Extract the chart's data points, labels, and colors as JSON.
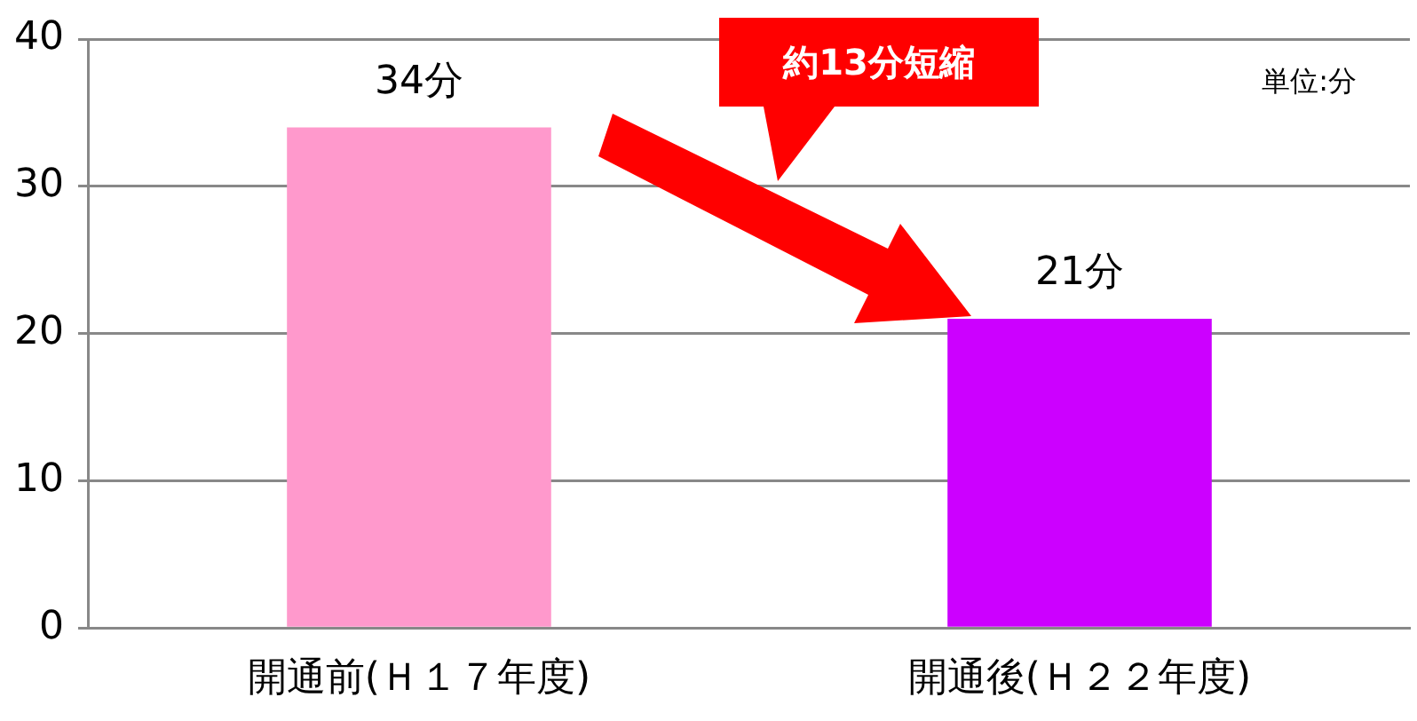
{
  "chart_data": {
    "type": "bar",
    "categories": [
      "開通前(Ｈ１７年度)",
      "開通後(Ｈ２２年度)"
    ],
    "values": [
      34,
      21
    ],
    "colors": [
      "#ff99cc",
      "#cc00ff"
    ],
    "value_labels": [
      "34分",
      "21分"
    ],
    "annotations": [
      "約13分短縮",
      "単位:分"
    ],
    "ylim": [
      0,
      40
    ],
    "yticks": [
      0,
      10,
      20,
      30,
      40
    ],
    "grid": "y",
    "legend": false
  }
}
